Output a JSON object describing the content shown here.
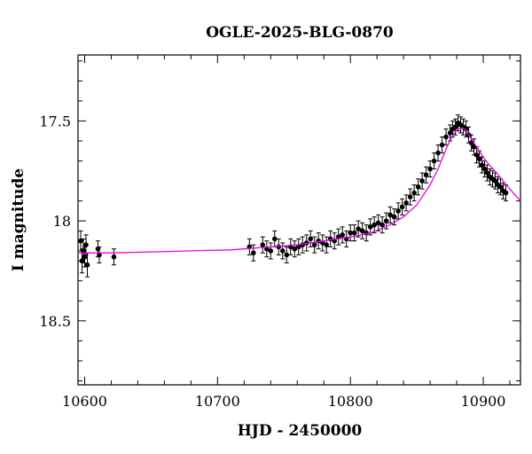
{
  "chart_data": {
    "type": "scatter",
    "title": "OGLE-2025-BLG-0870",
    "xlabel": "HJD - 2450000",
    "ylabel": "I magnitude",
    "xlim": [
      10595,
      10928
    ],
    "ylim": [
      18.82,
      17.17
    ],
    "y_inverted": true,
    "x_ticks": [
      10600,
      10700,
      10800,
      10900
    ],
    "y_ticks": [
      17.5,
      18,
      18.5
    ],
    "x_tick_labels": [
      "10600",
      "10700",
      "10800",
      "10900"
    ],
    "y_tick_labels": [
      "17.5",
      "18",
      "18.5"
    ],
    "grid": false,
    "legend": "none",
    "colors": {
      "points": "#000000",
      "model": "#e800e8"
    },
    "series": [
      {
        "type": "scatter-errorbar",
        "x": [
          10597,
          10598,
          10599,
          10600,
          10601,
          10602,
          10610,
          10611,
          10622,
          10724,
          10727,
          10734,
          10737,
          10740,
          10743,
          10746,
          10749,
          10752,
          10755,
          10758,
          10761,
          10764,
          10767,
          10770,
          10773,
          10776,
          10779,
          10782,
          10785,
          10788,
          10791,
          10794,
          10797,
          10800,
          10803,
          10806,
          10809,
          10812,
          10815,
          10818,
          10821,
          10824,
          10827,
          10830,
          10833,
          10836,
          10839,
          10842,
          10845,
          10848,
          10851,
          10854,
          10857,
          10860,
          10863,
          10866,
          10869,
          10872,
          10875,
          10877,
          10879,
          10881,
          10883,
          10885,
          10887,
          10889,
          10891,
          10893,
          10895,
          10897,
          10899,
          10901,
          10903,
          10905,
          10907,
          10909,
          10911,
          10913,
          10915,
          10917
        ],
        "y": [
          18.1,
          18.2,
          18.15,
          18.18,
          18.12,
          18.22,
          18.14,
          18.17,
          18.18,
          18.13,
          18.16,
          18.12,
          18.14,
          18.15,
          18.09,
          18.13,
          18.15,
          18.17,
          18.13,
          18.14,
          18.13,
          18.12,
          18.11,
          18.09,
          18.12,
          18.1,
          18.11,
          18.12,
          18.09,
          18.1,
          18.08,
          18.07,
          18.09,
          18.06,
          18.06,
          18.04,
          18.05,
          18.06,
          18.03,
          18.02,
          18.01,
          18.02,
          18.0,
          17.97,
          17.98,
          17.95,
          17.93,
          17.91,
          17.88,
          17.86,
          17.83,
          17.8,
          17.77,
          17.74,
          17.7,
          17.66,
          17.62,
          17.58,
          17.56,
          17.54,
          17.53,
          17.51,
          17.52,
          17.53,
          17.54,
          17.57,
          17.61,
          17.63,
          17.67,
          17.69,
          17.72,
          17.74,
          17.76,
          17.78,
          17.79,
          17.8,
          17.82,
          17.83,
          17.85,
          17.86
        ],
        "err": [
          0.05,
          0.06,
          0.06,
          0.05,
          0.05,
          0.06,
          0.04,
          0.04,
          0.04,
          0.04,
          0.04,
          0.04,
          0.04,
          0.04,
          0.04,
          0.04,
          0.04,
          0.04,
          0.04,
          0.04,
          0.04,
          0.04,
          0.04,
          0.04,
          0.04,
          0.04,
          0.04,
          0.04,
          0.04,
          0.04,
          0.04,
          0.04,
          0.04,
          0.04,
          0.04,
          0.04,
          0.04,
          0.04,
          0.04,
          0.04,
          0.04,
          0.04,
          0.04,
          0.04,
          0.04,
          0.04,
          0.04,
          0.04,
          0.04,
          0.04,
          0.04,
          0.04,
          0.04,
          0.04,
          0.04,
          0.04,
          0.04,
          0.04,
          0.04,
          0.04,
          0.04,
          0.04,
          0.04,
          0.04,
          0.04,
          0.04,
          0.04,
          0.04,
          0.04,
          0.04,
          0.04,
          0.04,
          0.04,
          0.04,
          0.04,
          0.04,
          0.04,
          0.04,
          0.04,
          0.04
        ]
      },
      {
        "type": "model-line",
        "x": [
          10595,
          10620,
          10650,
          10680,
          10710,
          10740,
          10760,
          10780,
          10800,
          10815,
          10830,
          10840,
          10850,
          10860,
          10866,
          10872,
          10877,
          10881,
          10884,
          10887,
          10890,
          10894,
          10898,
          10902,
          10906,
          10910,
          10915,
          10920,
          10928
        ],
        "y": [
          18.16,
          18.16,
          18.155,
          18.15,
          18.145,
          18.13,
          18.12,
          18.1,
          18.08,
          18.06,
          18.02,
          17.98,
          17.92,
          17.82,
          17.74,
          17.64,
          17.57,
          17.54,
          17.535,
          17.545,
          17.58,
          17.62,
          17.66,
          17.7,
          17.73,
          17.76,
          17.8,
          17.84,
          17.9
        ]
      }
    ]
  }
}
